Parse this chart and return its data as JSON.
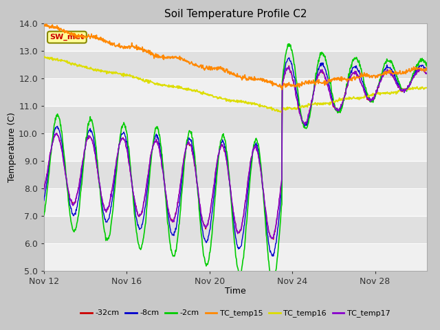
{
  "title": "Soil Temperature Profile C2",
  "xlabel": "Time",
  "ylabel": "Temperature (C)",
  "ylim": [
    5.0,
    14.0
  ],
  "yticks": [
    5.0,
    6.0,
    7.0,
    8.0,
    9.0,
    10.0,
    11.0,
    12.0,
    13.0,
    14.0
  ],
  "xtick_labels": [
    "Nov 12",
    "Nov 16",
    "Nov 20",
    "Nov 24",
    "Nov 28"
  ],
  "xtick_positions": [
    0,
    4,
    8,
    12,
    16
  ],
  "bg_color_light": "#f0f0f0",
  "bg_color_dark": "#e0e0e0",
  "fig_bg": "#c8c8c8",
  "line_colors": {
    "neg32cm": "#cc0000",
    "neg8cm": "#0000cc",
    "neg2cm": "#00cc00",
    "TC_temp15": "#ff8800",
    "TC_temp16": "#dddd00",
    "TC_temp17": "#8800cc"
  },
  "annotation_text": "SW_met",
  "annotation_color": "#cc0000",
  "annotation_bg": "#ffff99",
  "annotation_border": "#888800"
}
